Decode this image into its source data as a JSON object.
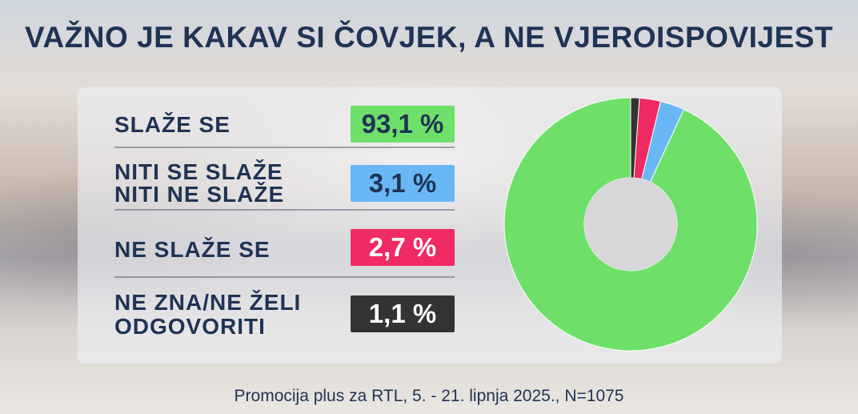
{
  "title": "VAŽNO JE KAKAV SI ČOVJEK, A NE VJEROISPOVIJEST",
  "rows": [
    {
      "label_line1": "SLAŽE SE",
      "label_line2": "",
      "value_text": "93,1 %",
      "color": "#6ee06a",
      "text_color": "#1f3354"
    },
    {
      "label_line1": "NITI SE SLAŽE",
      "label_line2": "NITI NE SLAŽE",
      "value_text": "3,1 %",
      "color": "#6ab7f5",
      "text_color": "#1f3354"
    },
    {
      "label_line1": "NE SLAŽE SE",
      "label_line2": "",
      "value_text": "2,7 %",
      "color": "#f02a63",
      "text_color": "#ffffff"
    },
    {
      "label_line1": "NE ZNA/NE ŽELI",
      "label_line2": "ODGOVORITI",
      "value_text": "1,1 %",
      "color": "#333333",
      "text_color": "#ffffff"
    }
  ],
  "footer": "Promocija plus za RTL, 5. - 21. lipnja 2025., N=1075",
  "chart_data": {
    "type": "pie",
    "variant": "donut",
    "title": "VAŽNO JE KAKAV SI ČOVJEK, A NE VJEROISPOVIJEST",
    "categories": [
      "SLAŽE SE",
      "NITI SE SLAŽE NITI NE SLAŽE",
      "NE SLAŽE SE",
      "NE ZNA/NE ŽELI ODGOVORITI"
    ],
    "values": [
      93.1,
      3.1,
      2.7,
      1.1
    ],
    "colors": [
      "#6ee06a",
      "#6ab7f5",
      "#f02a63",
      "#333333"
    ],
    "start": "top",
    "direction": "counterclockwise",
    "legend": "left"
  }
}
